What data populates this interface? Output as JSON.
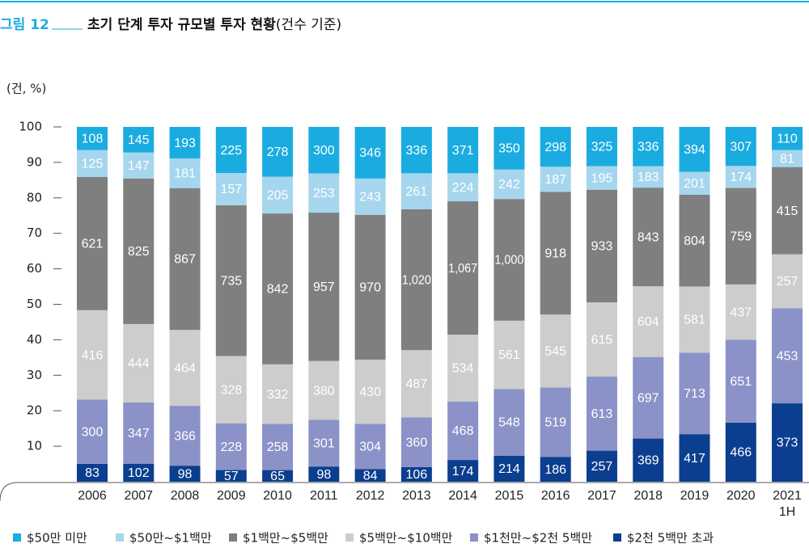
{
  "chart_data": {
    "type": "bar",
    "stacking": "percent",
    "figure_label": "그림 12",
    "title": "초기 단계 투자 규모별 투자 현황",
    "title_note": "(건수 기준)",
    "y_label": "(건, %)",
    "categories": [
      "2006",
      "2007",
      "2008",
      "2009",
      "2010",
      "2011",
      "2012",
      "2013",
      "2014",
      "2015",
      "2016",
      "2017",
      "2018",
      "2019",
      "2020",
      "2021\n1H"
    ],
    "ylim": [
      0,
      100
    ],
    "yticks": [
      10,
      20,
      30,
      40,
      50,
      60,
      70,
      80,
      90,
      100
    ],
    "legend": "bottom",
    "series": [
      {
        "name": "$50만 미만",
        "color": "#1aace0",
        "values": [
          108,
          145,
          193,
          225,
          278,
          300,
          346,
          336,
          371,
          350,
          298,
          325,
          336,
          394,
          307,
          110
        ]
      },
      {
        "name": "$50만~$1백만",
        "color": "#a6d6ee",
        "values": [
          125,
          147,
          181,
          157,
          205,
          253,
          243,
          261,
          224,
          242,
          187,
          195,
          183,
          201,
          174,
          81
        ]
      },
      {
        "name": "$1백만~$5백만",
        "color": "#7f7f7f",
        "values": [
          621,
          825,
          867,
          735,
          842,
          957,
          970,
          1020,
          1067,
          1000,
          918,
          933,
          843,
          804,
          759,
          415
        ],
        "value_labels": [
          "621",
          "825",
          "867",
          "735",
          "842",
          "957",
          "970",
          "1,020",
          "1,067",
          "1,000",
          "918",
          "933",
          "843",
          "804",
          "759",
          "415"
        ]
      },
      {
        "name": "$5백만~$10백만",
        "color": "#cdcdcd",
        "values": [
          416,
          444,
          464,
          328,
          332,
          380,
          430,
          487,
          534,
          561,
          545,
          615,
          604,
          581,
          437,
          257
        ]
      },
      {
        "name": "$1천만~$2천 5백만",
        "color": "#8a92c8",
        "values": [
          300,
          347,
          366,
          228,
          258,
          301,
          304,
          360,
          468,
          548,
          519,
          613,
          697,
          713,
          651,
          453
        ]
      },
      {
        "name": "$2천 5백만 초과",
        "color": "#0b3e8e",
        "values": [
          83,
          102,
          98,
          57,
          65,
          98,
          84,
          106,
          174,
          214,
          186,
          257,
          369,
          417,
          466,
          373
        ]
      }
    ]
  }
}
